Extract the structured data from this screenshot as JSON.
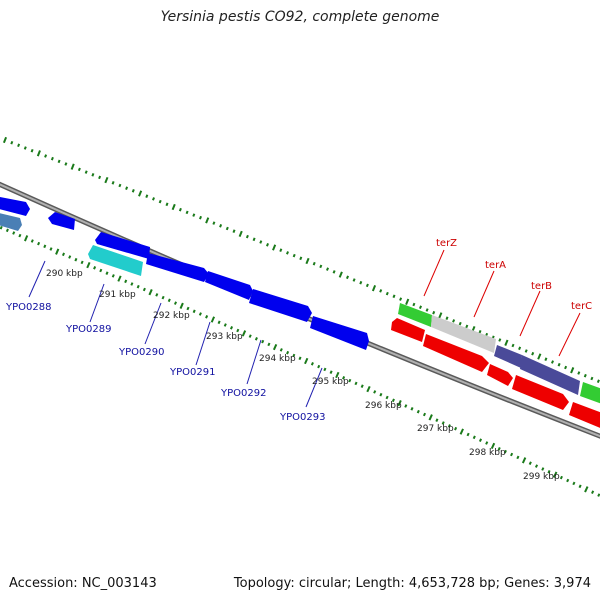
{
  "title": "Yersinia pestis CO92, complete genome",
  "footer": {
    "accession": "Accession: NC_003143",
    "stats": "Topology: circular; Length: 4,653,728 bp; Genes: 3,974"
  },
  "ticks": [
    "290 kbp",
    "291 kbp",
    "292 kbp",
    "293 kbp",
    "294 kbp",
    "295 kbp",
    "296 kbp",
    "297 kbp",
    "298 kbp",
    "299 kbp"
  ],
  "blue_genes": [
    "YPO0288",
    "YPO0289",
    "YPO0290",
    "YPO0291",
    "YPO0292",
    "YPO0293"
  ],
  "red_genes": [
    "terZ",
    "terA",
    "terB",
    "terC"
  ],
  "colors": {
    "backbone": "#888888",
    "cds_blue": "#0000ee",
    "cds_steel": "#4a7fb5",
    "cds_cyan": "#22cccc",
    "cds_green": "#33cc33",
    "cds_gray": "#cccccc",
    "cds_slate": "#4a4a99",
    "cds_red": "#ee0000",
    "gc_dots": "#1a7a1a",
    "label_blue": "#1010a0",
    "label_red": "#cc0000"
  }
}
